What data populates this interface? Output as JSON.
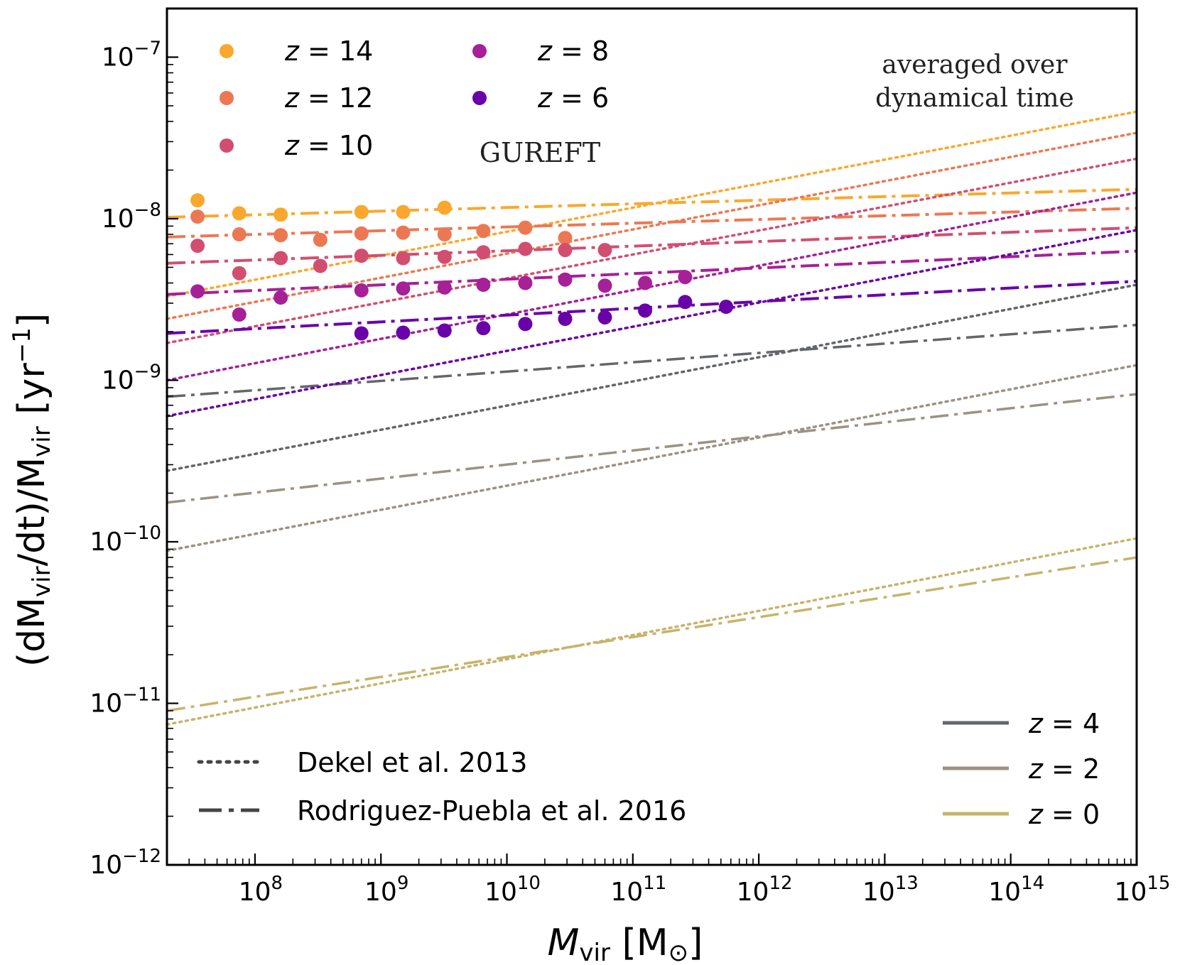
{
  "chart_data": {
    "type": "scatter",
    "title": "",
    "xscale": "log",
    "yscale": "log",
    "xlim": [
      20000000,
      1000000000000000
    ],
    "ylim": [
      1e-12,
      2e-07
    ],
    "xlabel": {
      "main": "M",
      "sub": "vir",
      "unit_open": " [M",
      "unit_sym": "⊙",
      "unit_close": "]"
    },
    "ylabel": {
      "p1": "(dM",
      "s1": "vir",
      "p2": "/dt)/M",
      "s2": "vir",
      "p3": " [yr",
      "sup": "−1",
      "p4": "]"
    },
    "x_ticks": [
      {
        "value": 100000000,
        "base": "10",
        "exp": "8"
      },
      {
        "value": 1000000000,
        "base": "10",
        "exp": "9"
      },
      {
        "value": 10000000000,
        "base": "10",
        "exp": "10"
      },
      {
        "value": 100000000000,
        "base": "10",
        "exp": "11"
      },
      {
        "value": 1000000000000,
        "base": "10",
        "exp": "12"
      },
      {
        "value": 10000000000000,
        "base": "10",
        "exp": "13"
      },
      {
        "value": 100000000000000,
        "base": "10",
        "exp": "14"
      },
      {
        "value": 1000000000000000,
        "base": "10",
        "exp": "15"
      }
    ],
    "y_ticks": [
      {
        "value": 1e-12,
        "base": "10",
        "exp": "−12"
      },
      {
        "value": 1e-11,
        "base": "10",
        "exp": "−11"
      },
      {
        "value": 1e-10,
        "base": "10",
        "exp": "−10"
      },
      {
        "value": 1e-09,
        "base": "10",
        "exp": "−9"
      },
      {
        "value": 1e-08,
        "base": "10",
        "exp": "−8"
      },
      {
        "value": 1e-07,
        "base": "10",
        "exp": "−7"
      }
    ],
    "gureft_series": [
      {
        "name": "z = 14",
        "z": 14,
        "color": "#f9a82d",
        "points": [
          [
            35000000,
            1.3e-08
          ],
          [
            75000000,
            1.08e-08
          ],
          [
            160000000,
            1.06e-08
          ],
          [
            700000000,
            1.1e-08
          ],
          [
            1500000000,
            1.1e-08
          ],
          [
            3200000000,
            1.17e-08
          ]
        ],
        "dekel": [
          3.3e-09,
          4.6e-08
        ],
        "rodriguez": [
          1.02e-08,
          1.52e-08
        ]
      },
      {
        "name": "z = 12",
        "z": 12,
        "color": "#ec7853",
        "points": [
          [
            35000000,
            1.03e-08
          ],
          [
            75000000,
            8e-09
          ],
          [
            160000000,
            7.9e-09
          ],
          [
            330000000,
            7.4e-09
          ],
          [
            700000000,
            8.1e-09
          ],
          [
            1500000000,
            8.2e-09
          ],
          [
            3200000000,
            8e-09
          ],
          [
            6500000000,
            8.4e-09
          ],
          [
            14000000000,
            8.8e-09
          ],
          [
            29000000000,
            7.6e-09
          ]
        ],
        "dekel": [
          2.4e-09,
          3.4e-08
        ],
        "rodriguez": [
          7.7e-09,
          1.16e-08
        ]
      },
      {
        "name": "z = 10",
        "z": 10,
        "color": "#d24e71",
        "points": [
          [
            35000000,
            6.8e-09
          ],
          [
            75000000,
            4.6e-09
          ],
          [
            160000000,
            5.7e-09
          ],
          [
            330000000,
            5.1e-09
          ],
          [
            700000000,
            5.9e-09
          ],
          [
            1500000000,
            5.7e-09
          ],
          [
            3200000000,
            5.8e-09
          ],
          [
            6500000000,
            6.2e-09
          ],
          [
            14000000000,
            6.5e-09
          ],
          [
            29000000000,
            6.4e-09
          ],
          [
            60000000000,
            6.4e-09
          ]
        ],
        "dekel": [
          1.7e-09,
          2.35e-08
        ],
        "rodriguez": [
          5.3e-09,
          8.8e-09
        ]
      },
      {
        "name": "z = 8",
        "z": 8,
        "color": "#a62098",
        "points": [
          [
            35000000,
            3.55e-09
          ],
          [
            75000000,
            2.55e-09
          ],
          [
            160000000,
            3.25e-09
          ],
          [
            700000000,
            3.6e-09
          ],
          [
            1500000000,
            3.7e-09
          ],
          [
            3200000000,
            3.75e-09
          ],
          [
            6500000000,
            3.9e-09
          ],
          [
            14000000000,
            4e-09
          ],
          [
            29000000000,
            4.2e-09
          ],
          [
            60000000000,
            3.85e-09
          ],
          [
            125000000000,
            4e-09
          ],
          [
            260000000000,
            4.35e-09
          ]
        ],
        "dekel": [
          1e-09,
          1.45e-08
        ],
        "rodriguez": [
          3.4e-09,
          6.3e-09
        ]
      },
      {
        "name": "z = 6",
        "z": 6,
        "color": "#6a00a8",
        "points": [
          [
            700000000,
            1.95e-09
          ],
          [
            1500000000,
            1.97e-09
          ],
          [
            3200000000,
            2.03e-09
          ],
          [
            6500000000,
            2.1e-09
          ],
          [
            14000000000,
            2.23e-09
          ],
          [
            29000000000,
            2.4e-09
          ],
          [
            60000000000,
            2.45e-09
          ],
          [
            125000000000,
            2.7e-09
          ],
          [
            260000000000,
            3.05e-09
          ],
          [
            550000000000,
            2.85e-09
          ]
        ],
        "dekel": [
          6e-10,
          8.5e-09
        ],
        "rodriguez": [
          1.95e-09,
          4.1e-09
        ]
      }
    ],
    "model_series": [
      {
        "name": "z = 4",
        "z": 4,
        "color": "#63666a",
        "dekel": [
          2.75e-10,
          3.9e-09
        ],
        "rodriguez": [
          7.9e-10,
          2.2e-09
        ]
      },
      {
        "name": "z = 2",
        "z": 2,
        "color": "#9b9282",
        "dekel": [
          8.8e-11,
          1.24e-09
        ],
        "rodriguez": [
          1.75e-10,
          8.2e-10
        ]
      },
      {
        "name": "z = 0",
        "z": 0,
        "color": "#c8b36b",
        "dekel": [
          7.4e-12,
          1.05e-10
        ],
        "rodriguez": [
          9e-12,
          8e-11
        ]
      }
    ],
    "legend_gureft": [
      {
        "z": "14",
        "color": "#f9a82d"
      },
      {
        "z": "12",
        "color": "#ec7853"
      },
      {
        "z": "10",
        "color": "#d24e71"
      },
      {
        "z": "8",
        "color": "#a62098"
      },
      {
        "z": "6",
        "color": "#6a00a8"
      }
    ],
    "legend_gureft_label": "GUREFT",
    "annotation": [
      "averaged over",
      "dynamical time"
    ],
    "legend_lines": [
      {
        "label": "Dekel et al. 2013",
        "style": "dotted",
        "color": "#444444"
      },
      {
        "label": "Rodriguez-Puebla et al. 2016",
        "style": "dashdot",
        "color": "#444444"
      }
    ],
    "legend_models": [
      {
        "z": "4",
        "color": "#63666a"
      },
      {
        "z": "2",
        "color": "#9b9282"
      },
      {
        "z": "0",
        "color": "#c8b36b"
      }
    ]
  }
}
